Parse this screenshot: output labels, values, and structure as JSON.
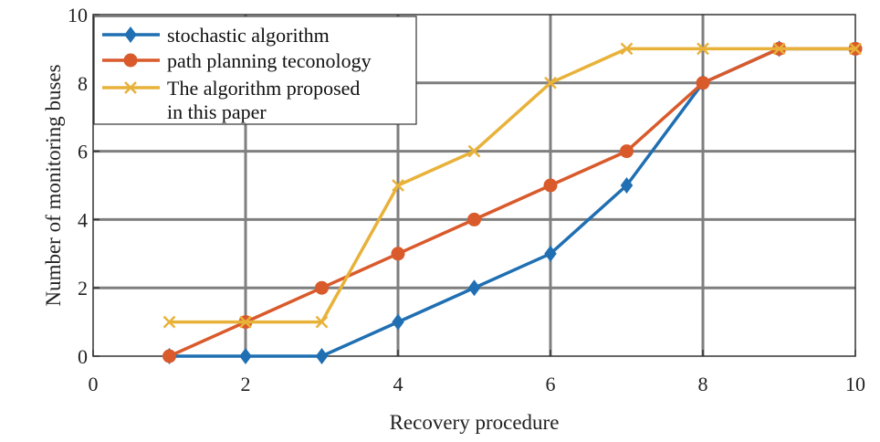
{
  "chart_data": {
    "type": "line",
    "title": "",
    "xlabel": "Recovery procedure",
    "ylabel": "Number of monitoring buses",
    "xlim": [
      0,
      10
    ],
    "ylim": [
      0,
      10
    ],
    "xticks": [
      0,
      2,
      4,
      6,
      8,
      10
    ],
    "yticks": [
      0,
      2,
      4,
      6,
      8,
      10
    ],
    "grid": true,
    "legend_position": "top-left",
    "series": [
      {
        "name": "stochastic algorithm",
        "color": "#1f6fb2",
        "marker": "diamond",
        "x": [
          1,
          2,
          3,
          4,
          5,
          6,
          7,
          8,
          9,
          10
        ],
        "y": [
          0,
          0,
          0,
          1,
          2,
          3,
          5,
          8,
          9,
          9
        ]
      },
      {
        "name": "path planning teconology",
        "color": "#d95a2b",
        "marker": "circle",
        "x": [
          1,
          2,
          3,
          4,
          5,
          6,
          7,
          8,
          9,
          10
        ],
        "y": [
          0,
          1,
          2,
          3,
          4,
          5,
          6,
          8,
          9,
          9
        ]
      },
      {
        "name_lines": [
          "The algorithm proposed",
          "in this paper"
        ],
        "color": "#e8b23a",
        "marker": "x",
        "x": [
          1,
          2,
          3,
          4,
          5,
          6,
          7,
          8,
          9,
          10
        ],
        "y": [
          1,
          1,
          1,
          5,
          6,
          8,
          9,
          9,
          9,
          9
        ]
      }
    ]
  }
}
